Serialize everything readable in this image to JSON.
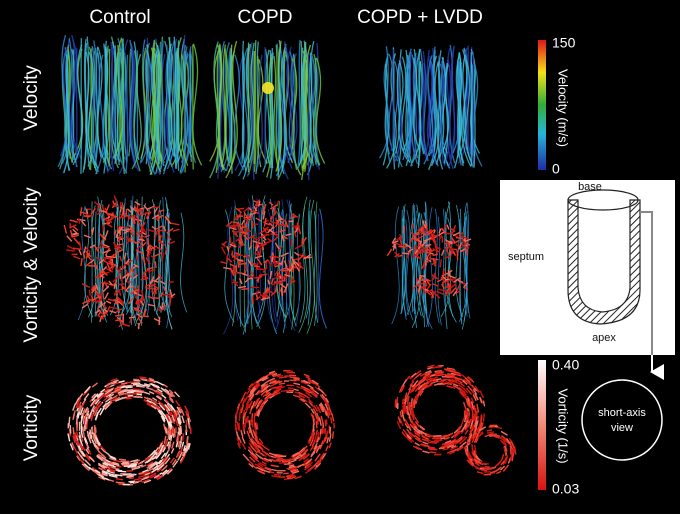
{
  "columns": [
    "Control",
    "COPD",
    "COPD + LVDD"
  ],
  "rows": [
    "Velocity",
    "Vorticity & Velocity",
    "Vorticity"
  ],
  "velocity_colorbar": {
    "max": "150",
    "label": "Velocity (m/s)",
    "min": "0"
  },
  "vorticity_colorbar": {
    "max": "0.40",
    "label": "Vorticity (1/s)",
    "min": "0.03"
  },
  "diagram": {
    "base": "base",
    "septum": "septum",
    "apex": "apex",
    "view": [
      "short-axis",
      "view"
    ]
  }
}
